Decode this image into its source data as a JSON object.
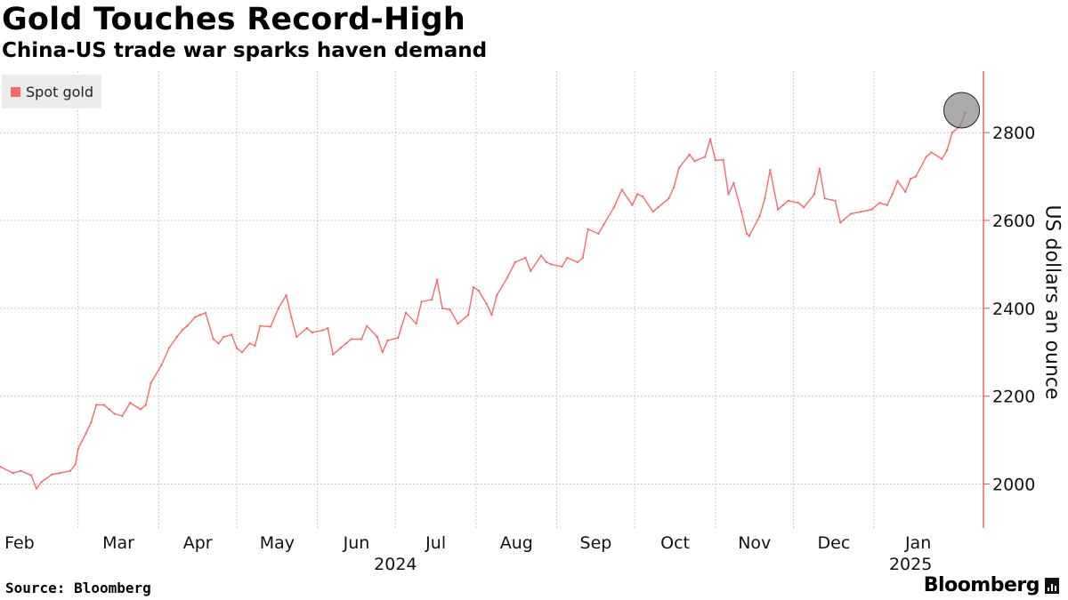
{
  "title": "Gold Touches Record-High",
  "subtitle": "China-US trade war sparks haven demand",
  "source": "Source: Bloomberg",
  "brand": "Bloomberg",
  "colors": {
    "series": "#f46b6b",
    "axis": "#e05050",
    "grid": "#c8c8c8",
    "highlight": "#888888"
  },
  "chart_data": {
    "type": "line",
    "ylabel": "US dollars an ounce",
    "ylim": [
      1900,
      2940
    ],
    "yticks": [
      2000,
      2200,
      2400,
      2600,
      2800
    ],
    "y_axis_side": "right",
    "grid": true,
    "legend_placement": "top-left",
    "x_range": [
      "2024-01-31",
      "2025-02-12"
    ],
    "month_ticks": [
      {
        "date": "2024-02-01",
        "label": "Feb"
      },
      {
        "date": "2024-03-01",
        "label": "Mar"
      },
      {
        "date": "2024-04-01",
        "label": "Apr"
      },
      {
        "date": "2024-05-01",
        "label": "May"
      },
      {
        "date": "2024-06-01",
        "label": "Jun"
      },
      {
        "date": "2024-07-01",
        "label": "Jul"
      },
      {
        "date": "2024-08-01",
        "label": "Aug"
      },
      {
        "date": "2024-09-01",
        "label": "Sep"
      },
      {
        "date": "2024-10-01",
        "label": "Oct"
      },
      {
        "date": "2024-11-01",
        "label": "Nov"
      },
      {
        "date": "2024-12-01",
        "label": "Dec"
      },
      {
        "date": "2025-01-01",
        "label": "Jan"
      }
    ],
    "year_labels": [
      {
        "date": "2024-07-01",
        "label": "2024"
      },
      {
        "date": "2025-01-15",
        "label": "2025"
      }
    ],
    "series": [
      {
        "name": "Spot gold",
        "points": [
          [
            "2024-01-31",
            2040
          ],
          [
            "2024-02-05",
            2025
          ],
          [
            "2024-02-08",
            2030
          ],
          [
            "2024-02-12",
            2020
          ],
          [
            "2024-02-14",
            1990
          ],
          [
            "2024-02-16",
            2005
          ],
          [
            "2024-02-20",
            2022
          ],
          [
            "2024-02-23",
            2025
          ],
          [
            "2024-02-27",
            2030
          ],
          [
            "2024-02-29",
            2045
          ],
          [
            "2024-03-01",
            2080
          ],
          [
            "2024-03-04",
            2115
          ],
          [
            "2024-03-06",
            2140
          ],
          [
            "2024-03-08",
            2180
          ],
          [
            "2024-03-11",
            2180
          ],
          [
            "2024-03-13",
            2170
          ],
          [
            "2024-03-15",
            2160
          ],
          [
            "2024-03-18",
            2155
          ],
          [
            "2024-03-21",
            2185
          ],
          [
            "2024-03-25",
            2170
          ],
          [
            "2024-03-27",
            2180
          ],
          [
            "2024-03-29",
            2230
          ],
          [
            "2024-04-02",
            2270
          ],
          [
            "2024-04-05",
            2310
          ],
          [
            "2024-04-08",
            2335
          ],
          [
            "2024-04-10",
            2350
          ],
          [
            "2024-04-12",
            2360
          ],
          [
            "2024-04-15",
            2380
          ],
          [
            "2024-04-17",
            2385
          ],
          [
            "2024-04-19",
            2390
          ],
          [
            "2024-04-22",
            2330
          ],
          [
            "2024-04-24",
            2320
          ],
          [
            "2024-04-26",
            2335
          ],
          [
            "2024-04-29",
            2340
          ],
          [
            "2024-05-01",
            2310
          ],
          [
            "2024-05-03",
            2300
          ],
          [
            "2024-05-06",
            2320
          ],
          [
            "2024-05-08",
            2315
          ],
          [
            "2024-05-10",
            2360
          ],
          [
            "2024-05-14",
            2358
          ],
          [
            "2024-05-17",
            2400
          ],
          [
            "2024-05-20",
            2430
          ],
          [
            "2024-05-22",
            2380
          ],
          [
            "2024-05-24",
            2335
          ],
          [
            "2024-05-28",
            2355
          ],
          [
            "2024-05-30",
            2345
          ],
          [
            "2024-06-03",
            2350
          ],
          [
            "2024-06-05",
            2355
          ],
          [
            "2024-06-07",
            2295
          ],
          [
            "2024-06-10",
            2310
          ],
          [
            "2024-06-12",
            2320
          ],
          [
            "2024-06-14",
            2330
          ],
          [
            "2024-06-18",
            2330
          ],
          [
            "2024-06-20",
            2360
          ],
          [
            "2024-06-24",
            2335
          ],
          [
            "2024-06-26",
            2300
          ],
          [
            "2024-06-28",
            2327
          ],
          [
            "2024-07-02",
            2333
          ],
          [
            "2024-07-05",
            2390
          ],
          [
            "2024-07-09",
            2365
          ],
          [
            "2024-07-11",
            2415
          ],
          [
            "2024-07-15",
            2420
          ],
          [
            "2024-07-17",
            2465
          ],
          [
            "2024-07-19",
            2400
          ],
          [
            "2024-07-22",
            2397
          ],
          [
            "2024-07-25",
            2365
          ],
          [
            "2024-07-29",
            2385
          ],
          [
            "2024-07-31",
            2448
          ],
          [
            "2024-08-02",
            2440
          ],
          [
            "2024-08-05",
            2410
          ],
          [
            "2024-08-07",
            2385
          ],
          [
            "2024-08-09",
            2430
          ],
          [
            "2024-08-13",
            2470
          ],
          [
            "2024-08-16",
            2505
          ],
          [
            "2024-08-20",
            2515
          ],
          [
            "2024-08-22",
            2485
          ],
          [
            "2024-08-26",
            2520
          ],
          [
            "2024-08-28",
            2505
          ],
          [
            "2024-08-30",
            2500
          ],
          [
            "2024-09-03",
            2495
          ],
          [
            "2024-09-05",
            2515
          ],
          [
            "2024-09-09",
            2505
          ],
          [
            "2024-09-11",
            2515
          ],
          [
            "2024-09-13",
            2580
          ],
          [
            "2024-09-17",
            2570
          ],
          [
            "2024-09-19",
            2590
          ],
          [
            "2024-09-23",
            2630
          ],
          [
            "2024-09-26",
            2670
          ],
          [
            "2024-09-30",
            2635
          ],
          [
            "2024-10-02",
            2660
          ],
          [
            "2024-10-04",
            2655
          ],
          [
            "2024-10-08",
            2620
          ],
          [
            "2024-10-10",
            2630
          ],
          [
            "2024-10-14",
            2650
          ],
          [
            "2024-10-16",
            2675
          ],
          [
            "2024-10-18",
            2720
          ],
          [
            "2024-10-22",
            2750
          ],
          [
            "2024-10-24",
            2735
          ],
          [
            "2024-10-28",
            2745
          ],
          [
            "2024-10-30",
            2785
          ],
          [
            "2024-11-01",
            2737
          ],
          [
            "2024-11-04",
            2738
          ],
          [
            "2024-11-06",
            2660
          ],
          [
            "2024-11-08",
            2685
          ],
          [
            "2024-11-11",
            2620
          ],
          [
            "2024-11-13",
            2570
          ],
          [
            "2024-11-14",
            2565
          ],
          [
            "2024-11-18",
            2610
          ],
          [
            "2024-11-20",
            2650
          ],
          [
            "2024-11-22",
            2715
          ],
          [
            "2024-11-25",
            2625
          ],
          [
            "2024-11-27",
            2635
          ],
          [
            "2024-11-29",
            2645
          ],
          [
            "2024-12-03",
            2640
          ],
          [
            "2024-12-05",
            2630
          ],
          [
            "2024-12-09",
            2660
          ],
          [
            "2024-12-11",
            2718
          ],
          [
            "2024-12-13",
            2650
          ],
          [
            "2024-12-17",
            2645
          ],
          [
            "2024-12-19",
            2595
          ],
          [
            "2024-12-23",
            2615
          ],
          [
            "2024-12-27",
            2620
          ],
          [
            "2024-12-31",
            2625
          ],
          [
            "2025-01-03",
            2640
          ],
          [
            "2025-01-06",
            2635
          ],
          [
            "2025-01-08",
            2660
          ],
          [
            "2025-01-10",
            2690
          ],
          [
            "2025-01-13",
            2665
          ],
          [
            "2025-01-15",
            2695
          ],
          [
            "2025-01-17",
            2700
          ],
          [
            "2025-01-21",
            2745
          ],
          [
            "2025-01-23",
            2755
          ],
          [
            "2025-01-27",
            2740
          ],
          [
            "2025-01-29",
            2760
          ],
          [
            "2025-01-31",
            2800
          ],
          [
            "2025-02-03",
            2815
          ],
          [
            "2025-02-05",
            2845
          ]
        ]
      }
    ],
    "highlight": {
      "date": "2025-02-05",
      "value": 2845,
      "shape": "circle"
    }
  }
}
